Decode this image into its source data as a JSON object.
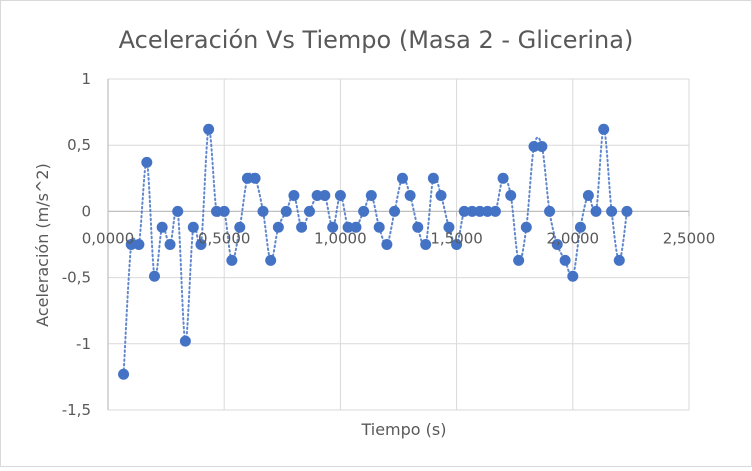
{
  "chart_data": {
    "type": "scatter",
    "title": "Aceleración Vs Tiempo (Masa 2 - Glicerina)",
    "xlabel": "Tiempo (s)",
    "ylabel": "Aceleración (m/s^2)",
    "xlim": [
      0,
      2.5
    ],
    "ylim": [
      -1.5,
      1
    ],
    "x_ticks": [
      0,
      0.5,
      1,
      1.5,
      2,
      2.5
    ],
    "x_tick_labels": [
      "0,0000",
      "0,5000",
      "1,0000",
      "1,5000",
      "2,0000",
      "2,5000"
    ],
    "y_ticks": [
      1,
      0.5,
      0,
      -0.5,
      -1,
      -1.5
    ],
    "y_tick_labels": [
      "1",
      "0,5",
      "0",
      "-0,5",
      "-1",
      "-1,5"
    ],
    "grid": true,
    "legend": "none",
    "colors": {
      "marker": "#4472c4",
      "trendline": "#4472c4",
      "grid": "#d9d9d9",
      "axis": "#bfbfbf"
    },
    "series": [
      {
        "x": [
          0.067,
          0.1,
          0.133,
          0.167,
          0.2,
          0.233,
          0.267,
          0.3,
          0.333,
          0.367,
          0.4,
          0.433,
          0.467,
          0.5,
          0.533,
          0.567,
          0.6,
          0.633,
          0.667,
          0.7,
          0.733,
          0.767,
          0.8,
          0.833,
          0.867,
          0.9,
          0.933,
          0.967,
          1.0,
          1.033,
          1.067,
          1.1,
          1.133,
          1.167,
          1.2,
          1.233,
          1.267,
          1.3,
          1.333,
          1.367,
          1.4,
          1.433,
          1.467,
          1.5,
          1.533,
          1.567,
          1.6,
          1.633,
          1.667,
          1.7,
          1.733,
          1.767,
          1.8,
          1.833,
          1.867,
          1.9,
          1.933,
          1.967,
          2.0,
          2.033,
          2.067,
          2.1,
          2.133,
          2.167,
          2.2,
          2.233
        ],
        "y": [
          -1.23,
          -0.25,
          -0.25,
          0.37,
          -0.49,
          -0.12,
          -0.25,
          0.0,
          -0.98,
          -0.12,
          -0.25,
          0.62,
          0.0,
          0.0,
          -0.37,
          -0.12,
          0.25,
          0.25,
          0.0,
          -0.37,
          -0.12,
          0.0,
          0.12,
          -0.12,
          0.0,
          0.12,
          0.12,
          -0.12,
          0.12,
          -0.12,
          -0.12,
          0.0,
          0.12,
          -0.12,
          -0.25,
          0.0,
          0.25,
          0.12,
          -0.12,
          -0.25,
          0.25,
          0.12,
          -0.12,
          -0.25,
          0.0,
          0.0,
          0.0,
          0.0,
          0.0,
          0.25,
          0.12,
          -0.37,
          -0.12,
          0.49,
          0.49,
          0.0,
          -0.25,
          -0.37,
          -0.49,
          -0.12,
          0.12,
          0.0,
          0.62,
          0.0,
          -0.37,
          0.0
        ]
      }
    ]
  }
}
